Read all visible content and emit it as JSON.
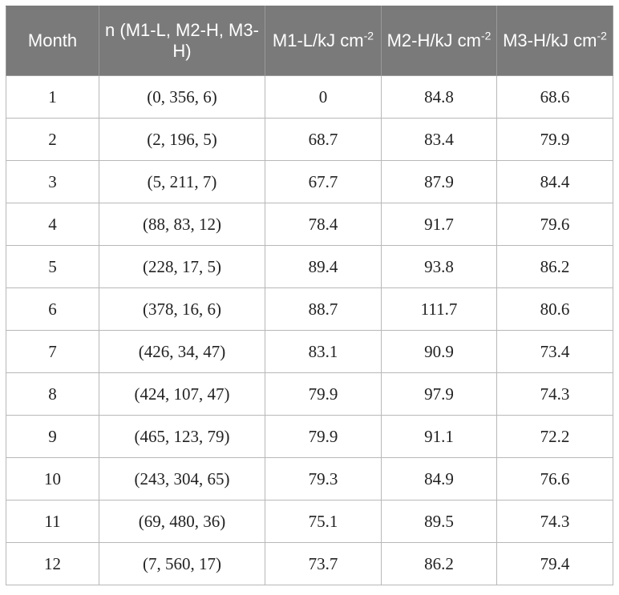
{
  "header": {
    "month": "Month",
    "n": "n (M1-L, M2-H, M3-H)",
    "m1": "M1-L/kJ cm",
    "m2": "M2-H/kJ cm",
    "m3": "M3-H/kJ cm",
    "unit_exp": "-2"
  },
  "rows": [
    {
      "month": "1",
      "n": "(0, 356, 6)",
      "m1": "0",
      "m2": "84.8",
      "m3": "68.6"
    },
    {
      "month": "2",
      "n": "(2, 196, 5)",
      "m1": "68.7",
      "m2": "83.4",
      "m3": "79.9"
    },
    {
      "month": "3",
      "n": "(5, 211, 7)",
      "m1": "67.7",
      "m2": "87.9",
      "m3": "84.4"
    },
    {
      "month": "4",
      "n": "(88, 83, 12)",
      "m1": "78.4",
      "m2": "91.7",
      "m3": "79.6"
    },
    {
      "month": "5",
      "n": "(228, 17, 5)",
      "m1": "89.4",
      "m2": "93.8",
      "m3": "86.2"
    },
    {
      "month": "6",
      "n": "(378, 16, 6)",
      "m1": "88.7",
      "m2": "111.7",
      "m3": "80.6"
    },
    {
      "month": "7",
      "n": "(426, 34, 47)",
      "m1": "83.1",
      "m2": "90.9",
      "m3": "73.4"
    },
    {
      "month": "8",
      "n": "(424, 107, 47)",
      "m1": "79.9",
      "m2": "97.9",
      "m3": "74.3"
    },
    {
      "month": "9",
      "n": "(465, 123, 79)",
      "m1": "79.9",
      "m2": "91.1",
      "m3": "72.2"
    },
    {
      "month": "10",
      "n": "(243, 304, 65)",
      "m1": "79.3",
      "m2": "84.9",
      "m3": "76.6"
    },
    {
      "month": "11",
      "n": "(69, 480, 36)",
      "m1": "75.1",
      "m2": "89.5",
      "m3": "74.3"
    },
    {
      "month": "12",
      "n": "(7, 560, 17)",
      "m1": "73.7",
      "m2": "86.2",
      "m3": "79.4"
    }
  ]
}
